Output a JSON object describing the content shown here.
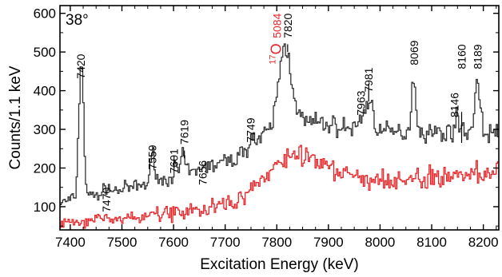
{
  "chart_data": {
    "type": "line",
    "title": "",
    "xlabel": "Excitation Energy (keV)",
    "ylabel": "Counts/1.1 keV",
    "xlim": [
      7380,
      8230
    ],
    "ylim": [
      40,
      620
    ],
    "xticks": [
      7400,
      7500,
      7600,
      7700,
      7800,
      7900,
      8000,
      8100,
      8200
    ],
    "xtick_labels": [
      "7400",
      "7500",
      "7600",
      "7700",
      "7800",
      "7900",
      "8000",
      "8100",
      "8200"
    ],
    "yticks": [
      100,
      200,
      300,
      400,
      500,
      600
    ],
    "ytick_labels": [
      "100",
      "200",
      "300",
      "400",
      "500",
      "600"
    ],
    "angle_annotation": "38°",
    "o17": {
      "mass": "17",
      "symbol": "O",
      "color": "#e8262a"
    },
    "baseline_points": [
      [
        7380,
        110
      ],
      [
        7400,
        118
      ],
      [
        7440,
        128
      ],
      [
        7480,
        140
      ],
      [
        7520,
        150
      ],
      [
        7560,
        162
      ],
      [
        7600,
        175
      ],
      [
        7640,
        190
      ],
      [
        7680,
        208
      ],
      [
        7720,
        225
      ],
      [
        7750,
        258
      ],
      [
        7780,
        288
      ],
      [
        7800,
        302
      ],
      [
        7820,
        312
      ],
      [
        7840,
        318
      ],
      [
        7870,
        318
      ],
      [
        7900,
        312
      ],
      [
        7940,
        302
      ],
      [
        7980,
        296
      ],
      [
        8020,
        292
      ],
      [
        8060,
        292
      ],
      [
        8100,
        292
      ],
      [
        8140,
        292
      ],
      [
        8180,
        292
      ],
      [
        8230,
        292
      ]
    ],
    "peaks": [
      {
        "label": "7420",
        "x": 7420,
        "height": 360,
        "width": 4.5
      },
      {
        "label": "7470",
        "x": 7470,
        "height": 18,
        "width": 4
      },
      {
        "label": "7559",
        "x": 7559,
        "height": 75,
        "width": 4.5
      },
      {
        "label": "7601",
        "x": 7601,
        "height": 22,
        "width": 4
      },
      {
        "label": "7619",
        "x": 7617,
        "height": 45,
        "width": 5
      },
      {
        "label": "7656",
        "x": 7656,
        "height": 14,
        "width": 4
      },
      {
        "label": "7749",
        "x": 7749,
        "height": 25,
        "width": 5
      },
      {
        "label": "5084",
        "x": 7812,
        "height": 175,
        "width": 11
      },
      {
        "label": "7820",
        "x": 7826,
        "height": 60,
        "width": 10
      },
      {
        "label": "7963",
        "x": 7963,
        "height": 22,
        "width": 7
      },
      {
        "label": "7981",
        "x": 7978,
        "height": 72,
        "width": 8
      },
      {
        "label": "8069",
        "x": 8064,
        "height": 138,
        "width": 4.5
      },
      {
        "label": "8146",
        "x": 8146,
        "height": 35,
        "width": 4
      },
      {
        "label": "8160",
        "x": 8160,
        "height": 14,
        "width": 4
      },
      {
        "label": "8189",
        "x": 8187,
        "height": 132,
        "width": 5
      }
    ],
    "series": [
      {
        "color": "#333333",
        "x_start": 7380,
        "x_end": 8230,
        "step": 2.6,
        "noise": 9,
        "seed": 7,
        "offset": 0,
        "include_peaks": true
      },
      {
        "color": "#e8262a",
        "x_start": 7380,
        "x_end": 8230,
        "step": 2.6,
        "noise": 12,
        "seed": 31,
        "offset": -8,
        "include_peaks": false,
        "red_points": [
          [
            7380,
            70
          ],
          [
            7420,
            68
          ],
          [
            7450,
            76
          ],
          [
            7500,
            78
          ],
          [
            7550,
            84
          ],
          [
            7600,
            92
          ],
          [
            7650,
            100
          ],
          [
            7700,
            115
          ],
          [
            7740,
            140
          ],
          [
            7770,
            178
          ],
          [
            7800,
            215
          ],
          [
            7820,
            245
          ],
          [
            7845,
            248
          ],
          [
            7870,
            232
          ],
          [
            7900,
            208
          ],
          [
            7930,
            190
          ],
          [
            7960,
            180
          ],
          [
            8000,
            172
          ],
          [
            8040,
            175
          ],
          [
            8080,
            180
          ],
          [
            8120,
            185
          ],
          [
            8160,
            190
          ],
          [
            8200,
            195
          ],
          [
            8230,
            200
          ]
        ]
      }
    ],
    "peak_labels": [
      {
        "text": "7420",
        "x": 7420,
        "y_text": 495,
        "rotate": true,
        "tick": false,
        "color": "#000"
      },
      {
        "text": "7470",
        "x": 7470,
        "y_text": 150,
        "rotate": true,
        "tick": false,
        "color": "#000"
      },
      {
        "text": "7559",
        "x": 7559,
        "y_text": 260,
        "rotate": true,
        "tick": false,
        "color": "#000"
      },
      {
        "text": "7601",
        "x": 7601,
        "y_text": 250,
        "rotate": true,
        "tick": true,
        "tick_top": 232,
        "tick_bottom": 200,
        "color": "#000"
      },
      {
        "text": "7619",
        "x": 7621,
        "y_text": 325,
        "rotate": true,
        "tick": true,
        "tick_top": 245,
        "tick_bottom": 225,
        "color": "#000"
      },
      {
        "text": "7656",
        "x": 7656,
        "y_text": 220,
        "rotate": true,
        "tick": false,
        "color": "#000"
      },
      {
        "text": "7749",
        "x": 7749,
        "y_text": 330,
        "rotate": true,
        "tick": false,
        "color": "#000"
      },
      {
        "text": "5084",
        "x": 7800,
        "y_text": 600,
        "rotate": true,
        "tick": false,
        "color": "#e8262a"
      },
      {
        "text": "7820",
        "x": 7821,
        "y_text": 600,
        "rotate": true,
        "tick": true,
        "tick_top": 520,
        "tick_bottom": 500,
        "color": "#000"
      },
      {
        "text": "7963",
        "x": 7963,
        "y_text": 400,
        "rotate": true,
        "tick": false,
        "color": "#000"
      },
      {
        "text": "7981",
        "x": 7978,
        "y_text": 460,
        "rotate": true,
        "tick": true,
        "tick_top": 418,
        "tick_bottom": 372,
        "color": "#000"
      },
      {
        "text": "8069",
        "x": 8066,
        "y_text": 530,
        "rotate": true,
        "tick": false,
        "color": "#000"
      },
      {
        "text": "8146",
        "x": 8144,
        "y_text": 395,
        "rotate": true,
        "tick": false,
        "color": "#000"
      },
      {
        "text": "8160",
        "x": 8158,
        "y_text": 520,
        "rotate": true,
        "tick": true,
        "tick_top": 345,
        "tick_bottom": 265,
        "color": "#000"
      },
      {
        "text": "8189",
        "x": 8189,
        "y_text": 520,
        "rotate": true,
        "tick": false,
        "color": "#000"
      }
    ]
  }
}
